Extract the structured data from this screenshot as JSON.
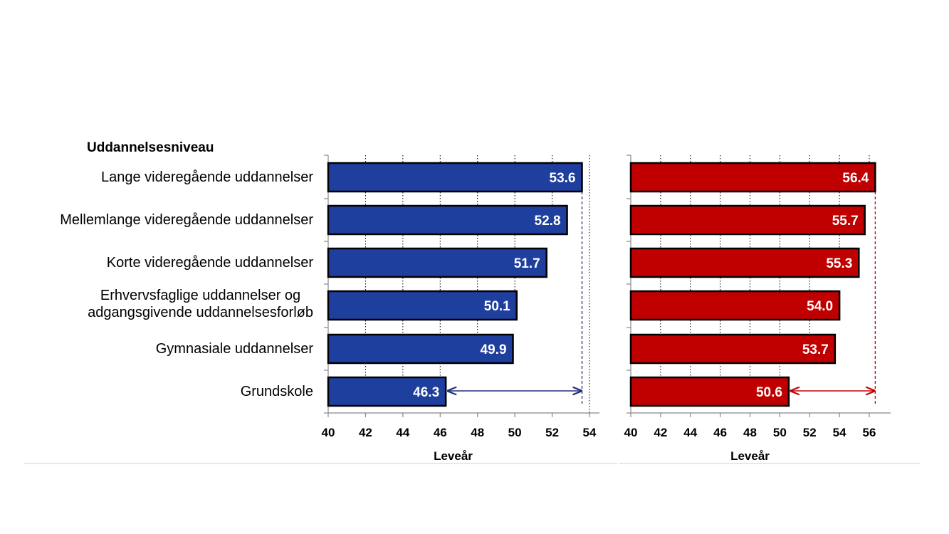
{
  "chart_data": [
    {
      "type": "bar",
      "orientation": "horizontal",
      "legend_title": "Uddannelsesniveau",
      "categories": [
        "Lange videregående uddannelser",
        "Mellemlange videregående uddannelser",
        "Korte videregående uddannelser",
        [
          "Erhvervsfaglige uddannelser og",
          "adgangsgivende uddannelsesforløb"
        ],
        "Gymnasiale uddannelser",
        "Grundskole"
      ],
      "values": [
        53.6,
        52.8,
        51.7,
        50.1,
        49.9,
        46.3
      ],
      "value_labels": [
        "53.6",
        "52.8",
        "51.7",
        "50.1",
        "49.9",
        "46.3"
      ],
      "xlabel": "Leveår",
      "xlim": [
        40,
        54
      ],
      "xticks": [
        "40",
        "42",
        "44",
        "46",
        "48",
        "50",
        "52",
        "54"
      ],
      "bar_color": "#1f3f9e",
      "arrow_color": "#1f2f7a",
      "vertical_gridlines": "dotted"
    },
    {
      "type": "bar",
      "orientation": "horizontal",
      "values": [
        56.4,
        55.7,
        55.3,
        54.0,
        53.7,
        50.6
      ],
      "value_labels": [
        "56.4",
        "55.7",
        "55.3",
        "54.0",
        "53.7",
        "50.6"
      ],
      "xlabel": "Leveår",
      "xlim": [
        40,
        56
      ],
      "xticks": [
        "40",
        "42",
        "44",
        "46",
        "48",
        "50",
        "52",
        "54",
        "56"
      ],
      "bar_color": "#c00000",
      "arrow_color": "#c00000",
      "vertical_gridlines": "dotted"
    }
  ]
}
